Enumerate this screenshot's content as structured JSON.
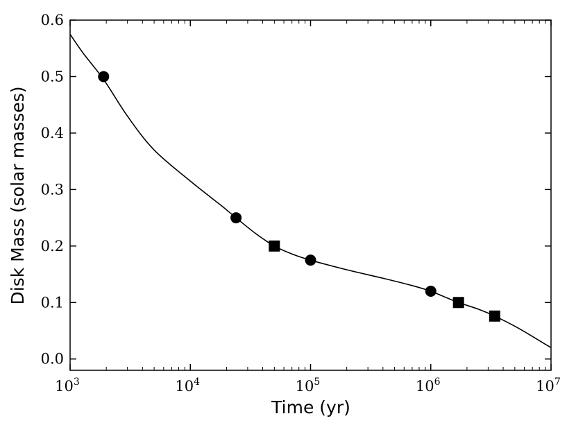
{
  "chart_data": {
    "type": "line",
    "xlabel": "Time (yr)",
    "ylabel": "Disk Mass (solar masses)",
    "xscale": "log",
    "xlim": [
      1000,
      10000000
    ],
    "ylim": [
      -0.02,
      0.6
    ],
    "grid": false,
    "legend": "none",
    "x_ticks": [
      {
        "value": 1000,
        "base": "10",
        "exp": "3"
      },
      {
        "value": 10000,
        "base": "10",
        "exp": "4"
      },
      {
        "value": 100000,
        "base": "10",
        "exp": "5"
      },
      {
        "value": 1000000,
        "base": "10",
        "exp": "6"
      },
      {
        "value": 10000000,
        "base": "10",
        "exp": "7"
      }
    ],
    "y_ticks": [
      {
        "value": 0.0,
        "label": "0.0"
      },
      {
        "value": 0.1,
        "label": "0.1"
      },
      {
        "value": 0.2,
        "label": "0.2"
      },
      {
        "value": 0.3,
        "label": "0.3"
      },
      {
        "value": 0.4,
        "label": "0.4"
      },
      {
        "value": 0.5,
        "label": "0.5"
      },
      {
        "value": 0.6,
        "label": "0.6"
      }
    ],
    "series": [
      {
        "style": "line",
        "color": "#000000",
        "points": [
          [
            1000,
            0.575
          ],
          [
            1300,
            0.54
          ],
          [
            1900,
            0.495
          ],
          [
            3000,
            0.43
          ],
          [
            5000,
            0.37
          ],
          [
            10000,
            0.315
          ],
          [
            18000,
            0.272
          ],
          [
            24000,
            0.25
          ],
          [
            35000,
            0.222
          ],
          [
            50000,
            0.2
          ],
          [
            70000,
            0.186
          ],
          [
            100000,
            0.175
          ],
          [
            200000,
            0.158
          ],
          [
            400000,
            0.143
          ],
          [
            700000,
            0.13
          ],
          [
            1000000,
            0.12
          ],
          [
            1300000,
            0.11
          ],
          [
            1700000,
            0.1
          ],
          [
            2500000,
            0.088
          ],
          [
            3400000,
            0.076
          ],
          [
            5000000,
            0.058
          ],
          [
            7000000,
            0.04
          ],
          [
            10000000,
            0.02
          ]
        ]
      },
      {
        "style": "circle-markers",
        "color": "#000000",
        "points": [
          [
            1900,
            0.5
          ],
          [
            24000,
            0.25
          ],
          [
            100000,
            0.175
          ],
          [
            1000000,
            0.12
          ]
        ]
      },
      {
        "style": "square-markers",
        "color": "#000000",
        "points": [
          [
            50000,
            0.2
          ],
          [
            1700000,
            0.1
          ],
          [
            3400000,
            0.076
          ]
        ]
      }
    ]
  }
}
